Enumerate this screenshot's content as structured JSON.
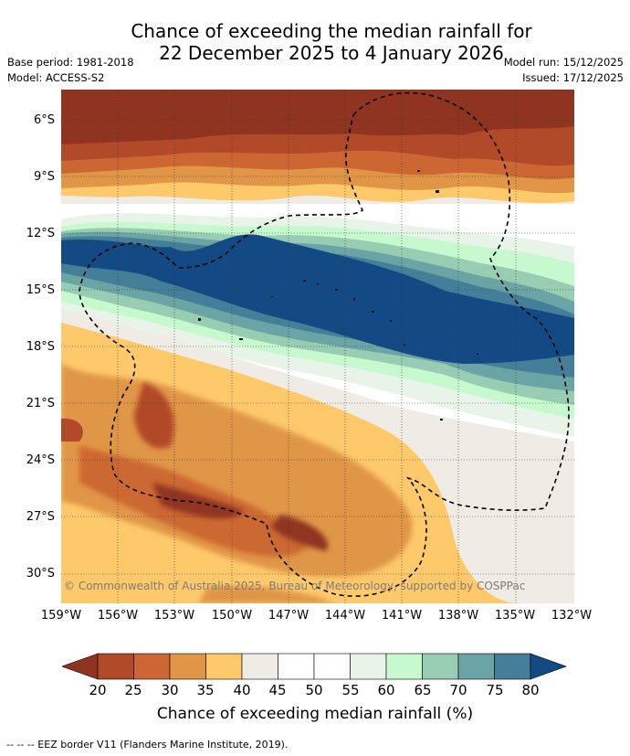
{
  "title_line1": "Chance of exceeding the median rainfall for",
  "title_line2": "22 December 2025 to 4 January 2026",
  "base_period": "Base period: 1981-2018",
  "model": "Model: ACCESS-S2",
  "model_run": "Model run: 15/12/2025",
  "issued": "Issued: 17/12/2025",
  "copyright": "© Commonwealth of Australia 2025, Bureau of Meteorology, supported by COSPPac",
  "lat_labels": [
    "6°S",
    "9°S",
    "12°S",
    "15°S",
    "18°S",
    "21°S",
    "24°S",
    "27°S",
    "30°S"
  ],
  "lon_labels": [
    "159°W",
    "156°W",
    "153°W",
    "150°W",
    "147°W",
    "144°W",
    "141°W",
    "138°W",
    "135°W",
    "132°W"
  ],
  "colorbar": {
    "label": "Chance of exceeding median rainfall (%)",
    "ticks": [
      "20",
      "25",
      "30",
      "35",
      "40",
      "45",
      "50",
      "55",
      "60",
      "65",
      "70",
      "75",
      "80"
    ],
    "colors": [
      "#8f3420",
      "#b14a28",
      "#cc6733",
      "#e09646",
      "#fdc96b",
      "#efebe5",
      "#ffffff",
      "#ffffff",
      "#e8f4e8",
      "#c7f9cf",
      "#98cdb4",
      "#6aa4a4",
      "#457e98",
      "#144a84"
    ]
  },
  "footer": "-- -- -- EEZ border V11 (Flanders Marine Institute, 2019).",
  "legend_colors": {
    "dark_brown": "#8f3420",
    "brown": "#b14a28",
    "orange": "#cc6733",
    "light_orange": "#e09646",
    "yellow": "#fdc96b",
    "cream": "#efebe5",
    "pale_green": "#e8f4e8",
    "mint": "#c7f9cf",
    "sea_green": "#98cdb4",
    "teal": "#6aa4a4",
    "steel_blue": "#457e98",
    "navy": "#144a84"
  }
}
